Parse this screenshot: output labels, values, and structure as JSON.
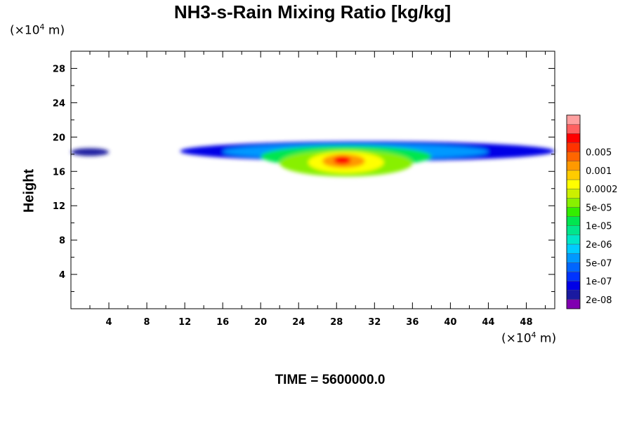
{
  "chart_data": {
    "type": "heatmap",
    "title": "NH3-s-Rain Mixing Ratio [kg/kg]",
    "ylabel": "Height",
    "y_unit": {
      "base": "(×10",
      "exp": "4",
      "rest": " m)"
    },
    "x_unit": {
      "base": "(×10",
      "exp": "4",
      "rest": " m)"
    },
    "footer": "TIME = 5600000.0",
    "xlim": [
      0,
      51
    ],
    "ylim": [
      0,
      30
    ],
    "x_ticks": [
      4,
      8,
      12,
      16,
      20,
      24,
      28,
      32,
      36,
      40,
      44,
      48
    ],
    "y_ticks": [
      4,
      8,
      12,
      16,
      20,
      24,
      28
    ],
    "colorbar": {
      "colors": [
        "#8000b0",
        "#1a1aa0",
        "#0000e6",
        "#0033ff",
        "#0066ff",
        "#0099ff",
        "#00ccff",
        "#00e6c8",
        "#00e68c",
        "#00e650",
        "#33ee00",
        "#88f000",
        "#ccf000",
        "#ffff00",
        "#ffcc00",
        "#ff9900",
        "#ff6600",
        "#ff3300",
        "#ff0000",
        "#ff6060",
        "#ffa0a0"
      ],
      "labels": [
        "2e-08",
        "1e-07",
        "5e-07",
        "2e-06",
        "1e-05",
        "5e-05",
        "0.0002",
        "0.001",
        "0.005"
      ]
    },
    "field": [
      {
        "x0": 0,
        "x1": 4,
        "y0": 17.8,
        "y1": 18.7,
        "level": 1
      },
      {
        "x0": 11.5,
        "x1": 51,
        "y0": 17.2,
        "y1": 19.5,
        "level": 2
      },
      {
        "x0": 16,
        "x1": 44,
        "y0": 17.4,
        "y1": 19.2,
        "level": 5
      },
      {
        "x0": 20,
        "x1": 38,
        "y0": 16.5,
        "y1": 19.0,
        "level": 9
      },
      {
        "x0": 22,
        "x1": 36,
        "y0": 15.4,
        "y1": 18.5,
        "level": 11
      },
      {
        "x0": 25,
        "x1": 33,
        "y0": 15.8,
        "y1": 18.3,
        "level": 13
      },
      {
        "x0": 26.5,
        "x1": 31,
        "y0": 16.4,
        "y1": 18.0,
        "level": 15
      },
      {
        "x0": 27.7,
        "x1": 29.5,
        "y0": 16.8,
        "y1": 17.8,
        "level": 18
      }
    ]
  }
}
